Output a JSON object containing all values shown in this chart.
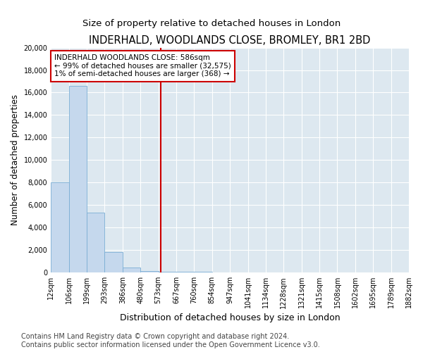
{
  "title": "INDERHALD, WOODLANDS CLOSE, BROMLEY, BR1 2BD",
  "subtitle": "Size of property relative to detached houses in London",
  "xlabel": "Distribution of detached houses by size in London",
  "ylabel": "Number of detached properties",
  "bar_values": [
    8050,
    16600,
    5300,
    1850,
    480,
    150,
    100,
    100,
    100,
    0,
    0,
    0,
    0,
    0,
    0,
    0,
    0,
    0,
    0,
    0
  ],
  "bar_labels": [
    "12sqm",
    "106sqm",
    "199sqm",
    "293sqm",
    "386sqm",
    "480sqm",
    "573sqm",
    "667sqm",
    "760sqm",
    "854sqm",
    "947sqm",
    "1041sqm",
    "1134sqm",
    "1228sqm",
    "1321sqm",
    "1415sqm",
    "1508sqm",
    "1602sqm",
    "1695sqm",
    "1789sqm",
    "1882sqm"
  ],
  "bar_color": "#c5d8ed",
  "bar_edge_color": "#7aadd4",
  "vline_x_index": 6,
  "vline_color": "#cc0000",
  "annotation_text": "INDERHALD WOODLANDS CLOSE: 586sqm\n← 99% of detached houses are smaller (32,575)\n1% of semi-detached houses are larger (368) →",
  "annotation_box_color": "#ffffff",
  "annotation_box_edge": "#cc0000",
  "ylim": [
    0,
    20000
  ],
  "yticks": [
    0,
    2000,
    4000,
    6000,
    8000,
    10000,
    12000,
    14000,
    16000,
    18000,
    20000
  ],
  "background_color": "#dde8f0",
  "grid_color": "#ffffff",
  "footer_text": "Contains HM Land Registry data © Crown copyright and database right 2024.\nContains public sector information licensed under the Open Government Licence v3.0.",
  "title_fontsize": 10.5,
  "subtitle_fontsize": 9.5,
  "ylabel_fontsize": 8.5,
  "xlabel_fontsize": 9,
  "tick_fontsize": 7,
  "footer_fontsize": 7,
  "annot_fontsize": 7.5
}
